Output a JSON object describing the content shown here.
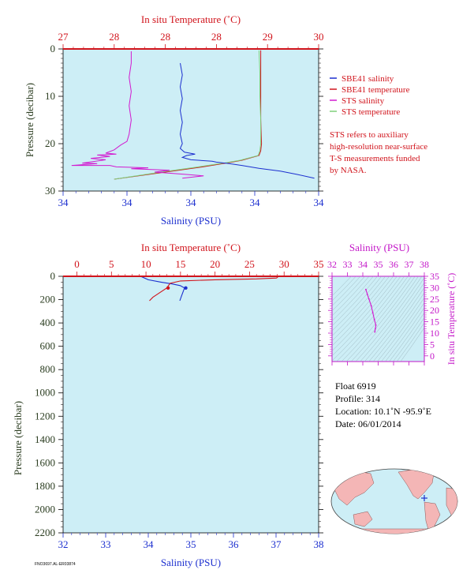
{
  "colors": {
    "plot_bg": "#cdeef6",
    "blue": "#1c2fcf",
    "red": "#d1141c",
    "magenta": "#d21ad0",
    "green": "#7fcf7a",
    "olive": "#2b3d20",
    "ts_label": "#c316c8"
  },
  "chart_data": [
    {
      "type": "line",
      "panel": "top-profile",
      "top_axis_title": "In situ Temperature (˚C)",
      "top_ticks": [
        "27",
        "28",
        "28",
        "28",
        "29",
        "30"
      ],
      "bottom_axis_title": "Salinity (PSU)",
      "bottom_ticks": [
        "34",
        "34",
        "34",
        "34",
        "34"
      ],
      "ylabel": "Pressure (decibar)",
      "y_ticks": [
        0,
        10,
        20,
        30
      ],
      "ylim": [
        0,
        30
      ],
      "temperature_range": [
        27.0,
        30.0
      ],
      "salinity_range": [
        34.0,
        35.2
      ],
      "grid": false,
      "legend_position": "right",
      "series": [
        {
          "name": "SBE41 salinity",
          "color": "blue",
          "axis": "salinity",
          "points": [
            [
              34.55,
              3.0
            ],
            [
              34.56,
              5.5
            ],
            [
              34.55,
              8.0
            ],
            [
              34.56,
              10.5
            ],
            [
              34.55,
              13.0
            ],
            [
              34.56,
              15.5
            ],
            [
              34.55,
              18.0
            ],
            [
              34.56,
              20.0
            ],
            [
              34.55,
              21.0
            ],
            [
              34.57,
              21.8
            ],
            [
              34.62,
              22.2
            ],
            [
              34.58,
              22.5
            ],
            [
              34.56,
              22.9
            ],
            [
              34.6,
              23.4
            ],
            [
              34.7,
              23.7
            ],
            [
              34.72,
              23.9
            ],
            [
              34.78,
              24.2
            ],
            [
              34.84,
              24.6
            ],
            [
              34.92,
              25.2
            ],
            [
              35.02,
              25.8
            ],
            [
              35.1,
              26.5
            ],
            [
              35.18,
              27.3
            ]
          ]
        },
        {
          "name": "SBE41 temperature",
          "color": "red",
          "axis": "temperature",
          "points": [
            [
              29.32,
              0.3
            ],
            [
              29.32,
              5.0
            ],
            [
              29.32,
              10.0
            ],
            [
              29.32,
              15.0
            ],
            [
              29.33,
              20.0
            ],
            [
              29.32,
              21.5
            ],
            [
              29.3,
              22.5
            ],
            [
              29.1,
              23.5
            ],
            [
              28.95,
              24.0
            ],
            [
              28.6,
              25.0
            ],
            [
              28.2,
              26.0
            ],
            [
              27.6,
              27.5
            ]
          ]
        },
        {
          "name": "STS salinity",
          "color": "magenta",
          "axis": "salinity",
          "points": [
            [
              34.32,
              0.5
            ],
            [
              34.32,
              3.0
            ],
            [
              34.31,
              6.0
            ],
            [
              34.32,
              9.0
            ],
            [
              34.31,
              12.0
            ],
            [
              34.32,
              15.0
            ],
            [
              34.31,
              18.0
            ],
            [
              34.3,
              19.5
            ],
            [
              34.27,
              20.3
            ],
            [
              34.24,
              21.3
            ],
            [
              34.2,
              22.0
            ],
            [
              34.25,
              22.2
            ],
            [
              34.16,
              22.4
            ],
            [
              34.22,
              22.7
            ],
            [
              34.13,
              23.1
            ],
            [
              34.2,
              23.4
            ],
            [
              34.14,
              23.8
            ],
            [
              34.09,
              24.1
            ],
            [
              34.16,
              24.2
            ],
            [
              34.04,
              24.6
            ],
            [
              34.22,
              24.6
            ],
            [
              34.25,
              24.9
            ],
            [
              34.4,
              25.1
            ],
            [
              34.32,
              25.3
            ],
            [
              34.5,
              25.6
            ],
            [
              34.43,
              26.0
            ],
            [
              34.58,
              26.5
            ],
            [
              34.66,
              26.8
            ],
            [
              34.56,
              27.3
            ]
          ]
        },
        {
          "name": "STS temperature",
          "color": "green",
          "axis": "temperature",
          "points": [
            [
              29.3,
              0.3
            ],
            [
              29.31,
              5.0
            ],
            [
              29.31,
              10.0
            ],
            [
              29.32,
              15.0
            ],
            [
              29.32,
              20.0
            ],
            [
              29.31,
              21.5
            ],
            [
              29.29,
              22.5
            ],
            [
              29.08,
              23.5
            ],
            [
              28.92,
              24.0
            ],
            [
              28.55,
              25.0
            ],
            [
              28.15,
              26.0
            ],
            [
              27.6,
              27.5
            ]
          ]
        }
      ]
    },
    {
      "type": "line",
      "panel": "bottom-profile",
      "top_axis_title": "In situ Temperature (˚C)",
      "top_ticks": [
        0,
        5,
        10,
        15,
        20,
        25,
        30,
        35
      ],
      "bottom_axis_title": "Salinity (PSU)",
      "bottom_ticks": [
        32,
        33,
        34,
        35,
        36,
        37,
        38
      ],
      "ylabel": "Pressure (decibar)",
      "y_ticks": [
        0,
        200,
        400,
        600,
        800,
        1000,
        1200,
        1400,
        1600,
        1800,
        2000,
        2200
      ],
      "ylim": [
        0,
        2200
      ],
      "xlim_temperature": [
        -2,
        35
      ],
      "xlim_salinity": [
        32,
        38
      ],
      "grid": false,
      "series": [
        {
          "name": "SBE41 salinity",
          "color": "blue",
          "axis": "salinity",
          "points": [
            [
              33.8,
              0
            ],
            [
              33.85,
              5
            ],
            [
              34.0,
              30
            ],
            [
              34.3,
              50
            ],
            [
              34.55,
              65
            ],
            [
              34.75,
              80
            ],
            [
              34.85,
              100
            ],
            [
              34.82,
              130
            ],
            [
              34.78,
              170
            ],
            [
              34.74,
              210
            ]
          ]
        },
        {
          "name": "SBE41 temperature",
          "color": "red",
          "axis": "temperature",
          "points": [
            [
              29.2,
              0
            ],
            [
              28.9,
              15
            ],
            [
              26.0,
              22
            ],
            [
              20.0,
              30
            ],
            [
              15.0,
              40
            ],
            [
              13.5,
              60
            ],
            [
              13.0,
              100
            ],
            [
              12.0,
              140
            ],
            [
              11.0,
              180
            ],
            [
              10.5,
              210
            ]
          ]
        }
      ],
      "markers": [
        {
          "axis": "salinity",
          "x": 34.88,
          "y": 100,
          "color": "blue"
        },
        {
          "axis": "temperature",
          "x": 13.2,
          "y": 100,
          "color": "red"
        }
      ]
    },
    {
      "type": "scatter",
      "panel": "ts-diagram",
      "top_axis_title": "Salinity (PSU)",
      "top_ticks": [
        32,
        33,
        34,
        35,
        36,
        37,
        38
      ],
      "right_axis_title": "In situ Temperature (˚C)",
      "right_ticks": [
        0,
        5,
        10,
        15,
        20,
        25,
        30,
        35
      ],
      "xlim": [
        32,
        38
      ],
      "ylim": [
        -2.5,
        35
      ],
      "points": [
        [
          34.2,
          29.2
        ],
        [
          34.3,
          27.0
        ],
        [
          34.4,
          25.0
        ],
        [
          34.55,
          22.0
        ],
        [
          34.65,
          19.0
        ],
        [
          34.75,
          16.0
        ],
        [
          34.85,
          13.5
        ],
        [
          34.82,
          12.0
        ],
        [
          34.78,
          10.5
        ]
      ]
    }
  ],
  "info": {
    "float": "Float  6919",
    "profile": "Profile:  314",
    "location": "Location:  10.1˚N  -95.9˚E",
    "date": "Date:  06/01/2014"
  },
  "note": {
    "line1": "STS refers to auxiliary",
    "line2": "high-resolution near-surface",
    "line3": "T-S measurements funded",
    "line4": "by NASA."
  },
  "footer": "FNO3697.AL-ER03874"
}
